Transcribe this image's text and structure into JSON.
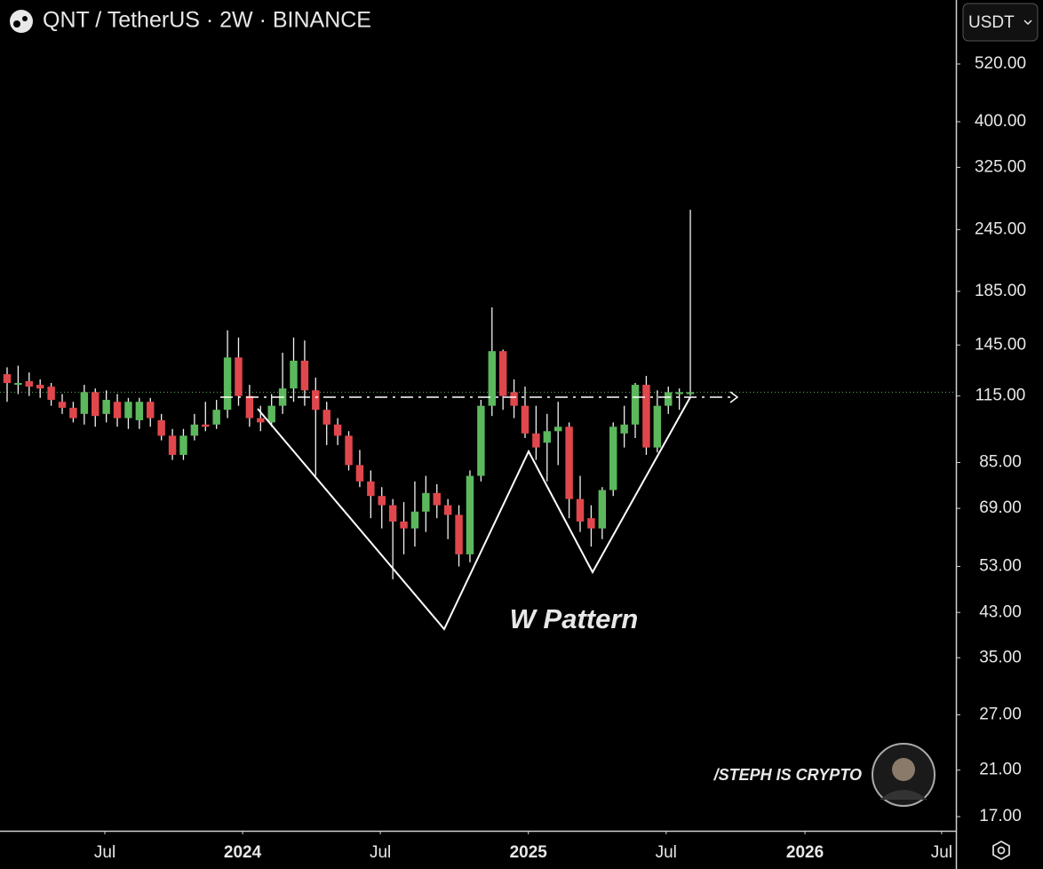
{
  "chart_data": {
    "type": "candlestick",
    "title": "QNT / TetherUS · 2W · BINANCE",
    "currency_button": "USDT",
    "annotation": "W Pattern",
    "watermark": "/STEPH IS CRYPTO",
    "up_color": "#5cb85c",
    "down_color": "#e0474c",
    "log_scale": true,
    "open": [
      127,
      121,
      123,
      121,
      120,
      112,
      109,
      106,
      117,
      106,
      112,
      104,
      103,
      112,
      103,
      96,
      88,
      96,
      101,
      101,
      108,
      137,
      115,
      104,
      102,
      110,
      119,
      135,
      118,
      108,
      101,
      96,
      84,
      78,
      73,
      70,
      65,
      63,
      68,
      74,
      70,
      67,
      56,
      80,
      110,
      141,
      117,
      110,
      97,
      93,
      98,
      100,
      72,
      66,
      63,
      75,
      97,
      101,
      121,
      91,
      110,
      116,
      116
    ],
    "high": [
      131,
      132,
      128,
      124,
      122,
      116,
      112,
      121,
      119,
      118,
      116,
      114,
      114,
      114,
      106,
      99,
      99,
      106,
      112,
      113,
      155,
      150,
      121,
      110,
      116,
      140,
      150,
      148,
      125,
      112,
      104,
      98,
      90,
      82,
      76,
      72,
      71,
      78,
      80,
      77,
      72,
      70,
      82,
      113,
      172,
      142,
      124,
      120,
      110,
      106,
      112,
      102,
      80,
      70,
      76,
      102,
      110,
      122,
      126,
      118,
      120,
      119,
      268
    ],
    "low": [
      112,
      116,
      115,
      114,
      110,
      106,
      102,
      101,
      100,
      102,
      100,
      99,
      99,
      100,
      94,
      86,
      86,
      94,
      98,
      99,
      104,
      110,
      100,
      98,
      100,
      106,
      112,
      110,
      80,
      92,
      92,
      82,
      76,
      66,
      63,
      50,
      56,
      58,
      62,
      66,
      60,
      53,
      54,
      78,
      105,
      108,
      104,
      95,
      86,
      78,
      84,
      66,
      62,
      58,
      60,
      73,
      91,
      95,
      88,
      89,
      106,
      108,
      115
    ],
    "close": [
      122,
      122,
      120,
      119,
      113,
      109,
      104,
      117,
      105,
      113,
      104,
      112,
      112,
      104,
      96,
      88,
      96,
      101,
      100,
      108,
      137,
      115,
      104,
      102,
      110,
      119,
      135,
      118,
      108,
      101,
      96,
      84,
      78,
      73,
      70,
      65,
      63,
      68,
      74,
      70,
      67,
      56,
      80,
      110,
      141,
      115,
      110,
      97,
      91,
      98,
      100,
      72,
      65,
      63,
      75,
      100,
      101,
      121,
      91,
      110,
      117,
      117,
      117
    ],
    "xlim": [
      -0.645,
      86.1
    ],
    "xticks": [
      {
        "value": 8.87,
        "label": "Jul"
      },
      {
        "value": 21.37,
        "label": "2024"
      },
      {
        "value": 33.87,
        "label": "Jul"
      },
      {
        "value": 47.3,
        "label": "2025"
      },
      {
        "value": 59.8,
        "label": "Jul"
      },
      {
        "value": 72.4,
        "label": "2026"
      },
      {
        "value": 84.8,
        "label": "Jul"
      }
    ],
    "ylim": [
      15.94,
      695.5
    ],
    "yticks": [
      {
        "value": 520,
        "label": "520.00"
      },
      {
        "value": 400,
        "label": "400.00"
      },
      {
        "value": 325,
        "label": "325.00"
      },
      {
        "value": 245,
        "label": "245.00"
      },
      {
        "value": 185,
        "label": "185.00"
      },
      {
        "value": 145,
        "label": "145.00"
      },
      {
        "value": 115,
        "label": "115.00"
      },
      {
        "value": 85,
        "label": "85.00"
      },
      {
        "value": 69,
        "label": "69.00"
      },
      {
        "value": 53,
        "label": "53.00"
      },
      {
        "value": 43,
        "label": "43.00"
      },
      {
        "value": 35,
        "label": "35.00"
      },
      {
        "value": 27,
        "label": "27.00"
      },
      {
        "value": 21,
        "label": "21.00"
      },
      {
        "value": 17,
        "label": "17.00"
      }
    ]
  }
}
